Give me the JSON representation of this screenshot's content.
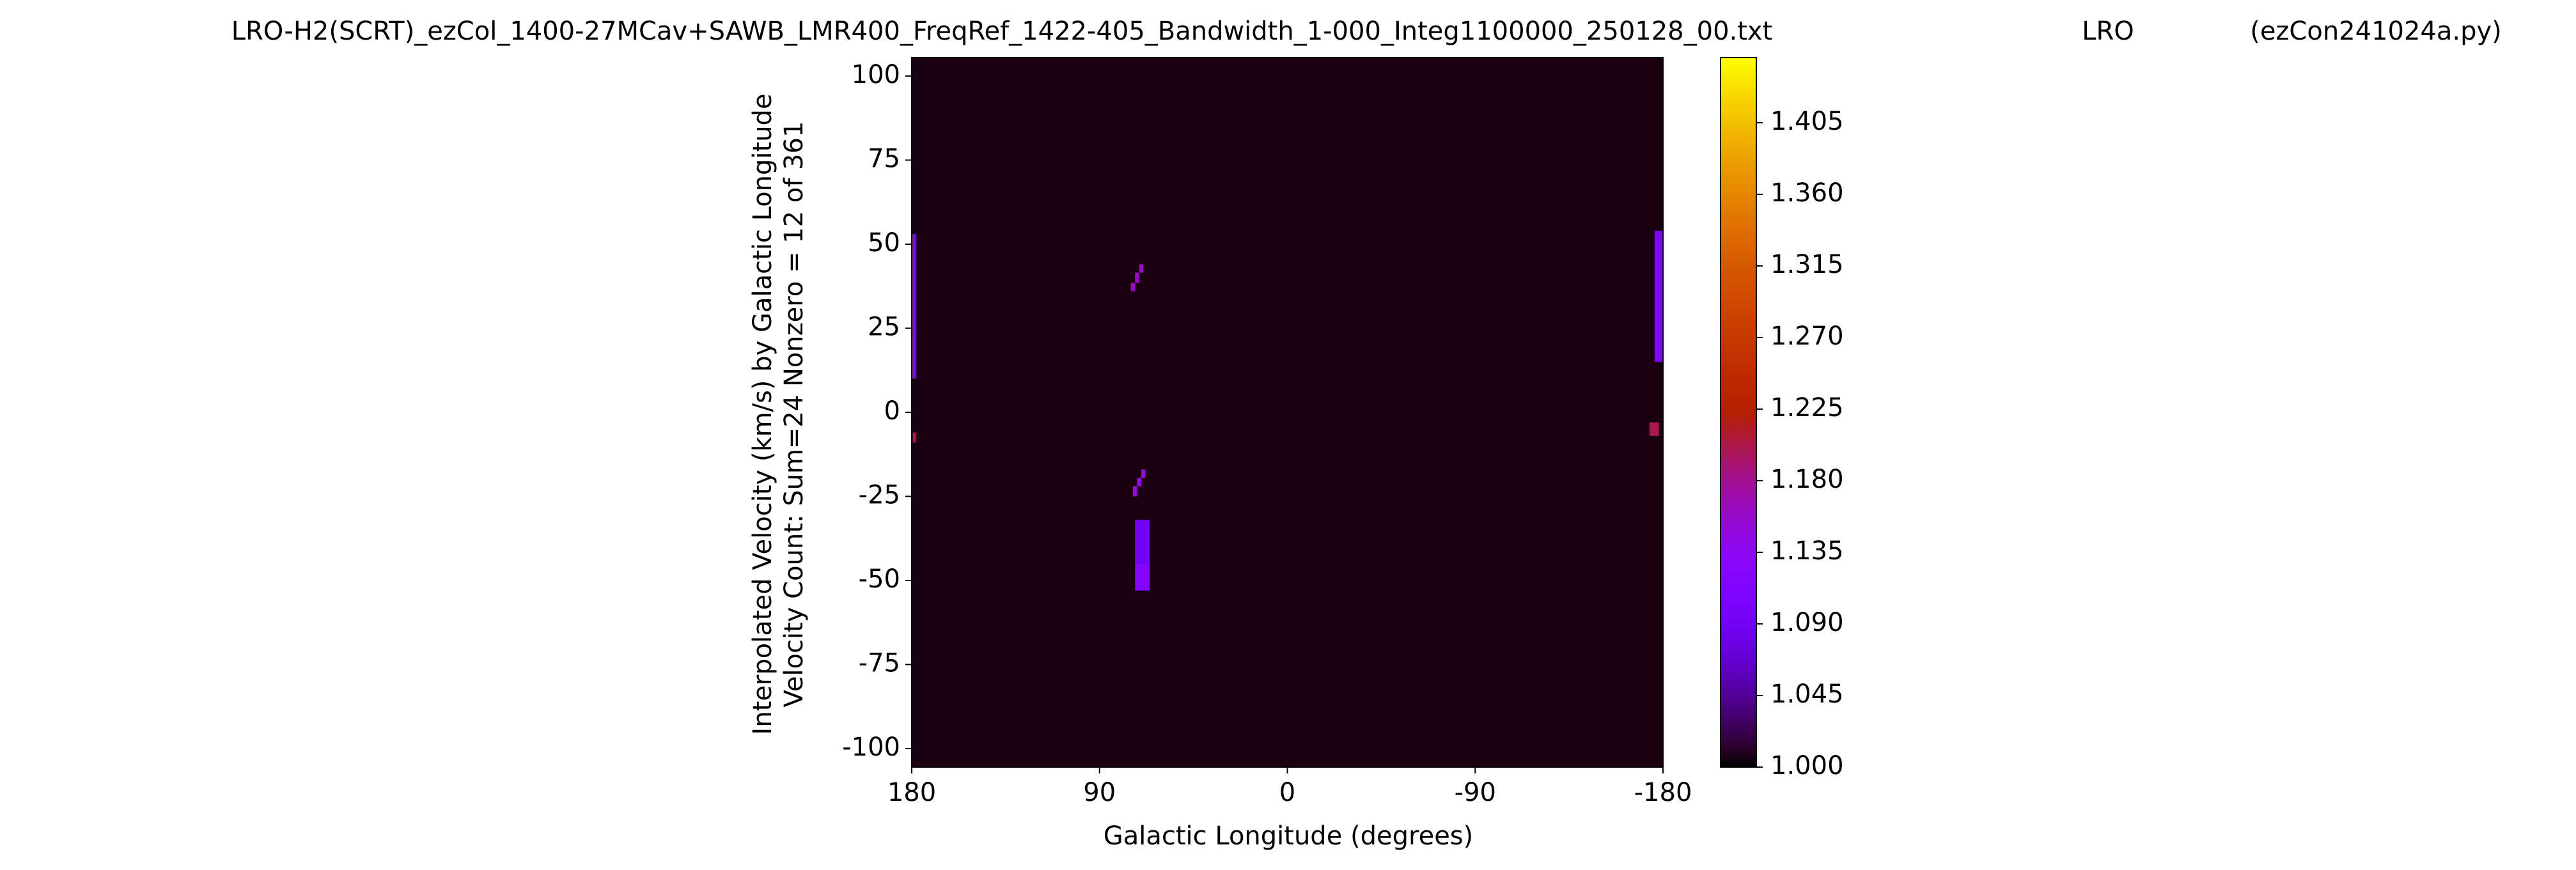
{
  "chart_data": {
    "type": "heatmap",
    "title": "LRO-H2(SCRT)_ezCol_1400-27MCav+SAWB_LMR400_FreqRef_1422-405_Bandwidth_1-000_Integ1100000_250128_00.txt",
    "title_center": "LRO",
    "title_right": "(ezCon241024a.py)",
    "ylabel": [
      "Interpolated Velocity (km/s) by Galactic Longitude",
      "Velocity Count: Sum=24 Nonzero = 12 of 361"
    ],
    "xlabel": "Galactic Longitude (degrees)",
    "xlim": [
      180,
      -180
    ],
    "ylim": [
      -105.5,
      105.5
    ],
    "xticks": [
      180,
      90,
      0,
      -90,
      -180
    ],
    "yticks": [
      -100,
      -75,
      -50,
      -25,
      0,
      25,
      50,
      75,
      100
    ],
    "colormap": "gnuplot",
    "clim": [
      1.0,
      1.446
    ],
    "cticks": [
      {
        "value": 1.0,
        "label": "1.000"
      },
      1.045,
      {
        "value": 1.09,
        "label": "1.090"
      },
      1.135,
      {
        "value": 1.18,
        "label": "1.180"
      },
      1.225,
      {
        "value": 1.27,
        "label": "1.270"
      },
      1.315,
      {
        "value": 1.36,
        "label": "1.360"
      },
      1.405
    ],
    "background_value": 1.005,
    "rects": [
      {
        "x": [
          180,
          178
        ],
        "y": [
          10,
          53
        ],
        "value": 1.12
      },
      {
        "x": [
          179.5,
          178
        ],
        "y": [
          -9,
          -6
        ],
        "value": 1.2
      },
      {
        "x": [
          75,
          73
        ],
        "y": [
          36,
          38.5
        ],
        "value": 1.16
      },
      {
        "x": [
          73,
          71
        ],
        "y": [
          38.5,
          41.5
        ],
        "value": 1.16
      },
      {
        "x": [
          71,
          69
        ],
        "y": [
          41.5,
          44
        ],
        "value": 1.16
      },
      {
        "x": [
          74,
          72
        ],
        "y": [
          -25,
          -22
        ],
        "value": 1.15
      },
      {
        "x": [
          72,
          70
        ],
        "y": [
          -22,
          -19.5
        ],
        "value": 1.15
      },
      {
        "x": [
          70,
          68
        ],
        "y": [
          -19.5,
          -17
        ],
        "value": 1.15
      },
      {
        "x": [
          73,
          66
        ],
        "y": [
          -45,
          -32
        ],
        "value": 1.09
      },
      {
        "x": [
          73,
          66
        ],
        "y": [
          -53,
          -45
        ],
        "value": 1.12
      },
      {
        "x": [
          -176,
          -180
        ],
        "y": [
          15,
          54
        ],
        "value": 1.11
      },
      {
        "x": [
          -173.5,
          -178
        ],
        "y": [
          -7,
          -3
        ],
        "value": 1.2
      }
    ]
  }
}
